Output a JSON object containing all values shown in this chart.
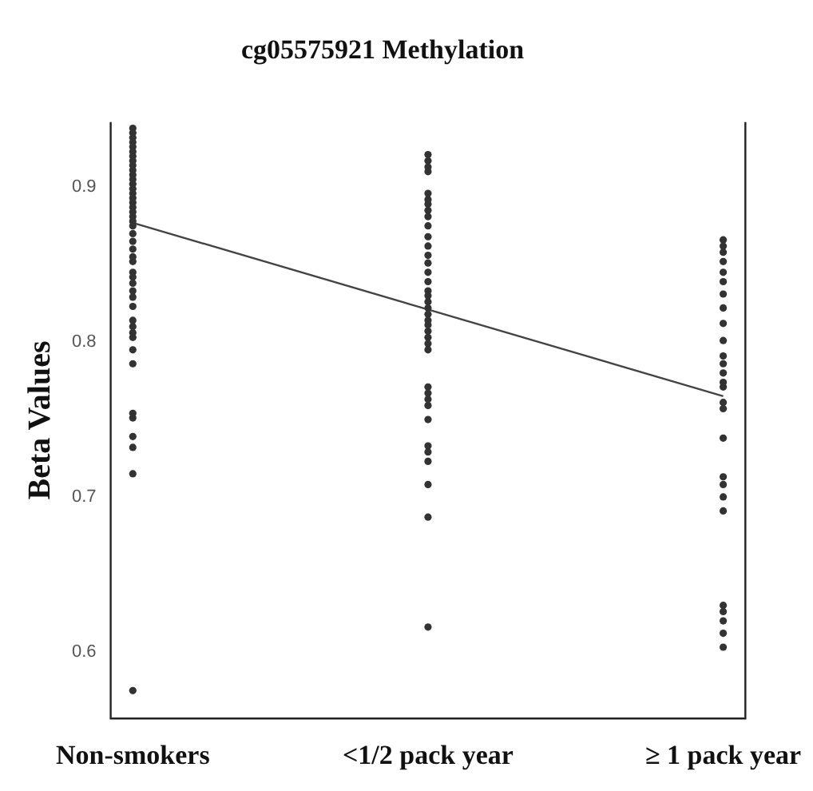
{
  "chart_data": {
    "type": "scatter",
    "title": "cg05575921 Methylation",
    "ylabel": "Beta Values",
    "categories": [
      "Non-smokers",
      "<1/2 pack year",
      "≥ 1 pack year"
    ],
    "ylim": [
      0.557,
      0.942
    ],
    "yticks": [
      0.6,
      0.7,
      0.8,
      0.9
    ],
    "grid": false,
    "legend": false,
    "series": [
      {
        "type": "scatter",
        "marker": "circle",
        "color": "#333333",
        "x": [
          "Non-smokers",
          "Non-smokers",
          "Non-smokers",
          "Non-smokers",
          "Non-smokers",
          "Non-smokers",
          "Non-smokers",
          "Non-smokers",
          "Non-smokers",
          "Non-smokers",
          "Non-smokers",
          "Non-smokers",
          "Non-smokers",
          "Non-smokers",
          "Non-smokers",
          "Non-smokers",
          "Non-smokers",
          "Non-smokers",
          "Non-smokers",
          "Non-smokers",
          "Non-smokers",
          "Non-smokers",
          "Non-smokers",
          "Non-smokers",
          "Non-smokers",
          "Non-smokers",
          "Non-smokers",
          "Non-smokers",
          "Non-smokers",
          "Non-smokers",
          "Non-smokers",
          "Non-smokers",
          "Non-smokers",
          "Non-smokers",
          "Non-smokers",
          "Non-smokers",
          "Non-smokers",
          "Non-smokers",
          "Non-smokers",
          "Non-smokers",
          "Non-smokers",
          "Non-smokers",
          "Non-smokers",
          "Non-smokers",
          "Non-smokers"
        ],
        "values": [
          0.938,
          0.935,
          0.932,
          0.929,
          0.926,
          0.923,
          0.92,
          0.917,
          0.914,
          0.911,
          0.908,
          0.905,
          0.902,
          0.899,
          0.896,
          0.893,
          0.89,
          0.887,
          0.884,
          0.881,
          0.878,
          0.875,
          0.87,
          0.865,
          0.86,
          0.855,
          0.852,
          0.845,
          0.842,
          0.838,
          0.833,
          0.829,
          0.823,
          0.814,
          0.81,
          0.806,
          0.803,
          0.795,
          0.786,
          0.754,
          0.751,
          0.739,
          0.732,
          0.715,
          0.575
        ]
      },
      {
        "type": "scatter",
        "marker": "circle",
        "color": "#333333",
        "x": [
          "<1/2 pack year",
          "<1/2 pack year",
          "<1/2 pack year",
          "<1/2 pack year",
          "<1/2 pack year",
          "<1/2 pack year",
          "<1/2 pack year",
          "<1/2 pack year",
          "<1/2 pack year",
          "<1/2 pack year",
          "<1/2 pack year",
          "<1/2 pack year",
          "<1/2 pack year",
          "<1/2 pack year",
          "<1/2 pack year",
          "<1/2 pack year",
          "<1/2 pack year",
          "<1/2 pack year",
          "<1/2 pack year",
          "<1/2 pack year",
          "<1/2 pack year",
          "<1/2 pack year",
          "<1/2 pack year",
          "<1/2 pack year",
          "<1/2 pack year",
          "<1/2 pack year",
          "<1/2 pack year",
          "<1/2 pack year",
          "<1/2 pack year",
          "<1/2 pack year",
          "<1/2 pack year",
          "<1/2 pack year",
          "<1/2 pack year",
          "<1/2 pack year",
          "<1/2 pack year",
          "<1/2 pack year",
          "<1/2 pack year",
          "<1/2 pack year"
        ],
        "values": [
          0.921,
          0.917,
          0.913,
          0.91,
          0.896,
          0.892,
          0.889,
          0.885,
          0.881,
          0.875,
          0.868,
          0.862,
          0.856,
          0.851,
          0.845,
          0.839,
          0.833,
          0.83,
          0.826,
          0.822,
          0.818,
          0.814,
          0.811,
          0.807,
          0.803,
          0.799,
          0.795,
          0.771,
          0.767,
          0.763,
          0.759,
          0.75,
          0.733,
          0.729,
          0.723,
          0.708,
          0.687,
          0.616
        ]
      },
      {
        "type": "scatter",
        "marker": "circle",
        "color": "#333333",
        "x": [
          "≥ 1 pack year",
          "≥ 1 pack year",
          "≥ 1 pack year",
          "≥ 1 pack year",
          "≥ 1 pack year",
          "≥ 1 pack year",
          "≥ 1 pack year",
          "≥ 1 pack year",
          "≥ 1 pack year",
          "≥ 1 pack year",
          "≥ 1 pack year",
          "≥ 1 pack year",
          "≥ 1 pack year",
          "≥ 1 pack year",
          "≥ 1 pack year",
          "≥ 1 pack year",
          "≥ 1 pack year",
          "≥ 1 pack year",
          "≥ 1 pack year",
          "≥ 1 pack year",
          "≥ 1 pack year",
          "≥ 1 pack year",
          "≥ 1 pack year",
          "≥ 1 pack year",
          "≥ 1 pack year",
          "≥ 1 pack year",
          "≥ 1 pack year"
        ],
        "values": [
          0.866,
          0.862,
          0.858,
          0.852,
          0.845,
          0.839,
          0.831,
          0.822,
          0.812,
          0.801,
          0.791,
          0.786,
          0.78,
          0.774,
          0.771,
          0.761,
          0.757,
          0.738,
          0.713,
          0.708,
          0.7,
          0.691,
          0.63,
          0.626,
          0.62,
          0.612,
          0.603
        ]
      },
      {
        "type": "line",
        "marker": "none",
        "color": "#444444",
        "x": [
          "Non-smokers",
          "<1/2 pack year",
          "≥ 1 pack year"
        ],
        "values": [
          0.877,
          0.821,
          0.765
        ]
      }
    ]
  }
}
